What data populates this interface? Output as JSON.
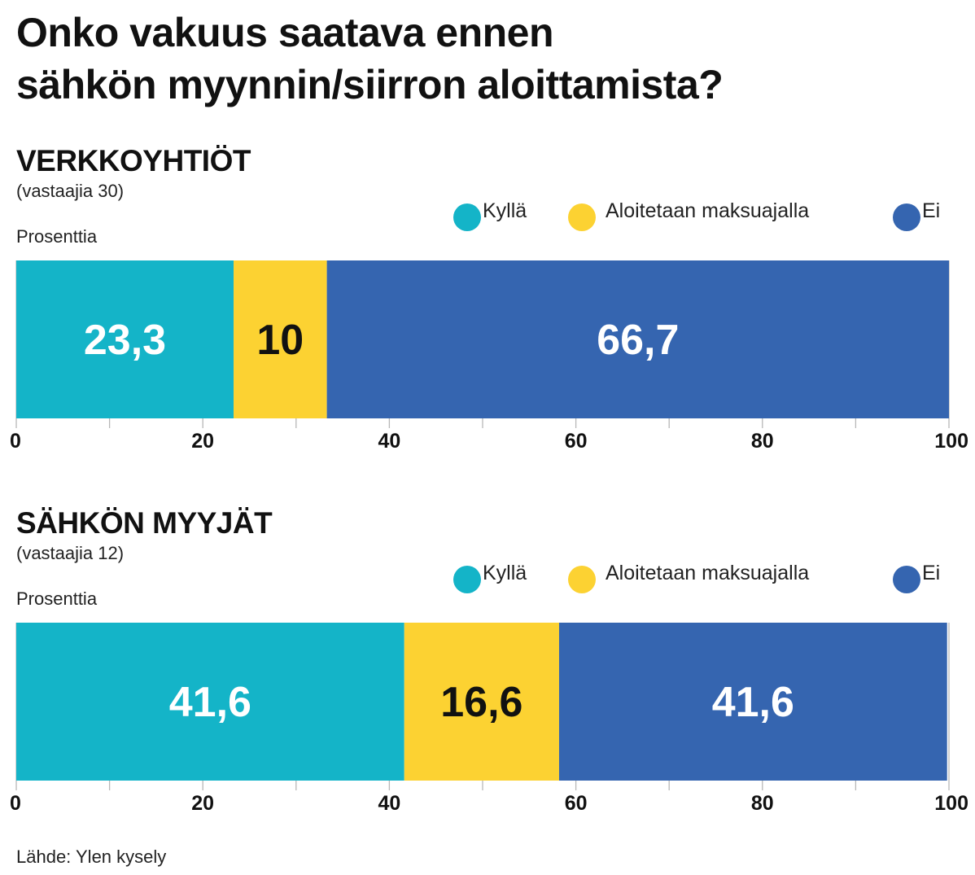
{
  "title_line1": "Onko vakuus saatava ennen",
  "title_line2": "sähkön myynnin/siirron aloittamista?",
  "source": "Lähde: Ylen kysely",
  "colors": {
    "kylla": "#14b4c8",
    "aloitetaan": "#fcd232",
    "ei": "#3565b0",
    "text_light": "#ffffff",
    "text_dark": "#111111",
    "grid": "#b8b8b8"
  },
  "chart_data": [
    {
      "type": "bar",
      "stacked": true,
      "orientation": "horizontal",
      "title": "VERKKOYHTIÖT",
      "subtitle": "(vastaajia 30)",
      "unit_label": "Prosenttia",
      "legend_position": "top-right",
      "xlim": [
        0,
        100
      ],
      "ticks": [
        0,
        20,
        40,
        60,
        80,
        100
      ],
      "series": [
        {
          "name": "Kyllä",
          "value": 23.3,
          "label": "23,3",
          "color_key": "kylla"
        },
        {
          "name": "Aloitetaan maksuajalla",
          "value": 10,
          "label": "10",
          "color_key": "aloitetaan"
        },
        {
          "name": "Ei",
          "value": 66.7,
          "label": "66,7",
          "color_key": "ei"
        }
      ]
    },
    {
      "type": "bar",
      "stacked": true,
      "orientation": "horizontal",
      "title": "SÄHKÖN MYYJÄT",
      "subtitle": "(vastaajia 12)",
      "unit_label": "Prosenttia",
      "legend_position": "top-right",
      "xlim": [
        0,
        100
      ],
      "ticks": [
        0,
        20,
        40,
        60,
        80,
        100
      ],
      "series": [
        {
          "name": "Kyllä",
          "value": 41.6,
          "label": "41,6",
          "color_key": "kylla"
        },
        {
          "name": "Aloitetaan maksuajalla",
          "value": 16.6,
          "label": "16,6",
          "color_key": "aloitetaan"
        },
        {
          "name": "Ei",
          "value": 41.6,
          "label": "41,6",
          "color_key": "ei"
        }
      ]
    }
  ]
}
